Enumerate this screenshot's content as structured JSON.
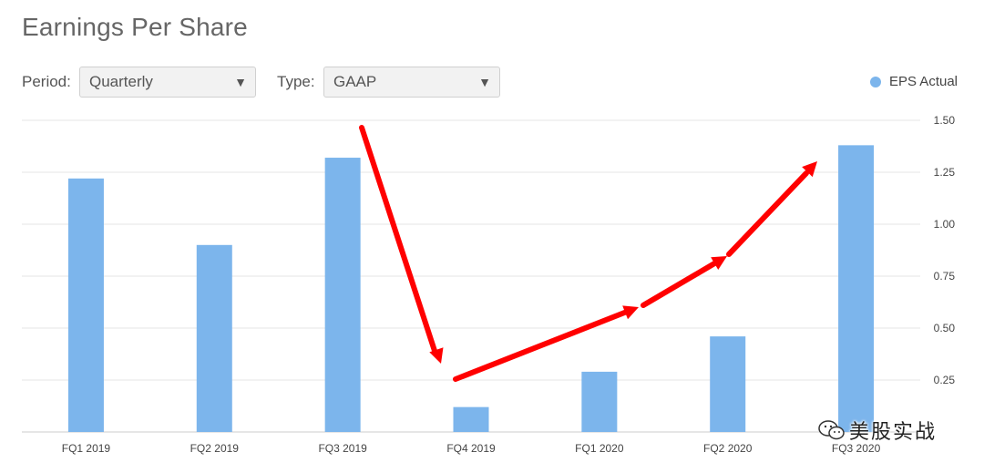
{
  "title": "Earnings Per Share",
  "controls": {
    "period_label": "Period:",
    "period_value": "Quarterly",
    "type_label": "Type:",
    "type_value": "GAAP"
  },
  "legend": {
    "label": "EPS Actual",
    "color": "#7cb5ec"
  },
  "watermark": {
    "text": "美股实战",
    "icon": "wechat-icon"
  },
  "annotation_color": "#ff0000",
  "chart_data": {
    "type": "bar",
    "categories": [
      "FQ1 2019",
      "FQ2 2019",
      "FQ3 2019",
      "FQ4 2019",
      "FQ1 2020",
      "FQ2 2020",
      "FQ3 2020"
    ],
    "series": [
      {
        "name": "EPS Actual",
        "values": [
          1.22,
          0.9,
          1.32,
          0.12,
          0.29,
          0.46,
          1.38
        ]
      }
    ],
    "y_ticks": [
      "1.50",
      "1.25",
      "1.00",
      "0.75",
      "0.50",
      "0.25"
    ],
    "ylim": [
      0,
      1.5
    ],
    "yaxis_side": "right",
    "grid": true,
    "legend_position": "top-right"
  }
}
